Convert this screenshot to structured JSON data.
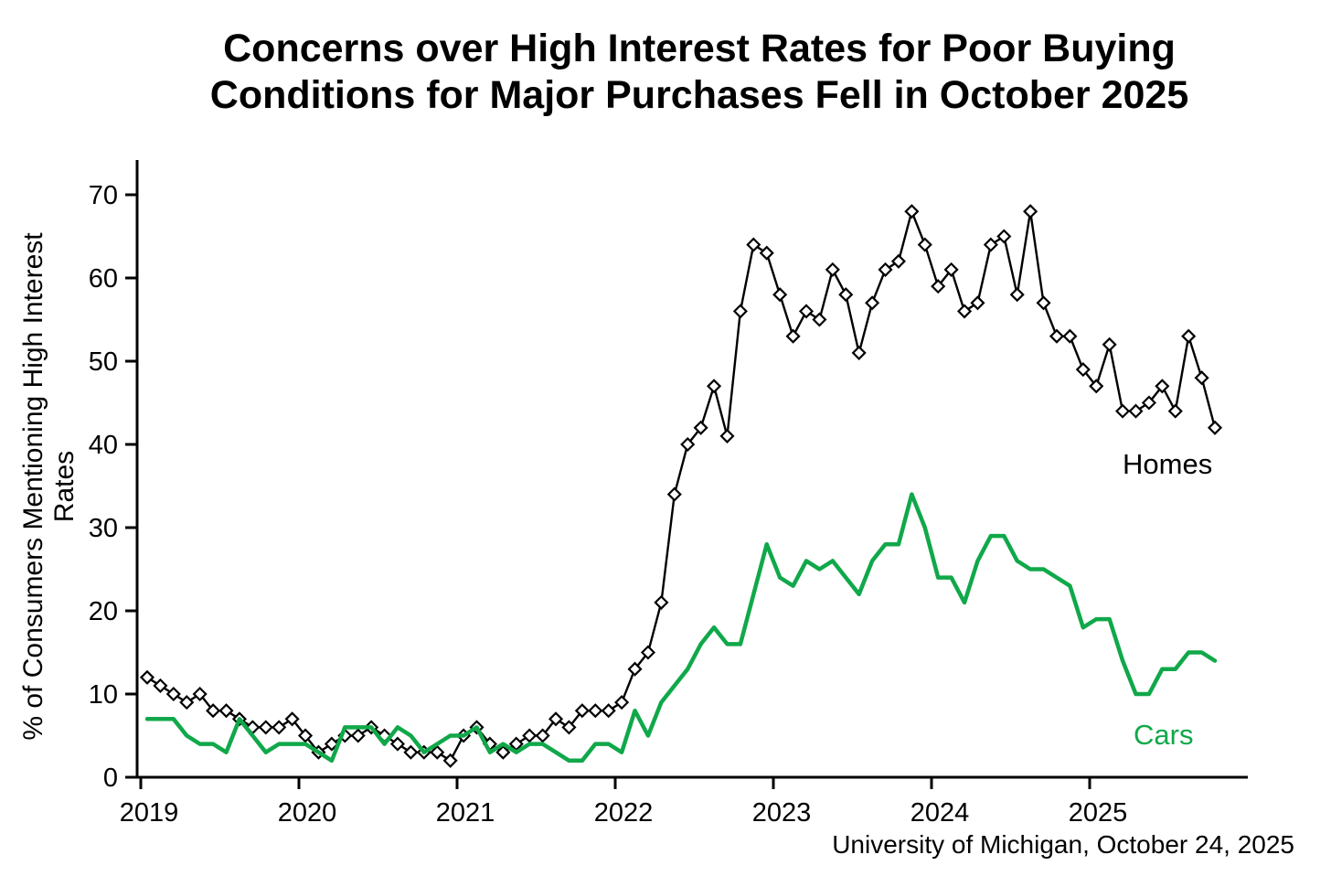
{
  "title_line1": "Concerns over High Interest Rates for Poor Buying",
  "title_line2": "Conditions for Major Purchases Fell in October 2025",
  "y_axis_label": "% of Consumers Mentioning High Interest Rates",
  "source_note": "University of Michigan, October 24, 2025",
  "labels": {
    "homes": "Homes",
    "cars": "Cars"
  },
  "colors": {
    "homes": "#000000",
    "cars": "#10a84a",
    "background": "#ffffff"
  },
  "chart_data": {
    "type": "line",
    "title": "Concerns over High Interest Rates for Poor Buying Conditions for Major Purchases Fell in October 2025",
    "xlabel": "",
    "ylabel": "% of Consumers Mentioning High Interest Rates",
    "x_tick_labels": [
      "2019",
      "2020",
      "2021",
      "2022",
      "2023",
      "2024",
      "2025"
    ],
    "y_ticks": [
      0,
      10,
      20,
      30,
      40,
      50,
      60,
      70
    ],
    "ylim": [
      0,
      74
    ],
    "grid": false,
    "legend_position": "inline-right",
    "x_monthly_start": "2019-01",
    "x_monthly_end": "2025-10",
    "series": [
      {
        "name": "Homes",
        "marker": "diamond",
        "color": "#000000",
        "values": [
          12,
          11,
          10,
          9,
          10,
          8,
          8,
          7,
          6,
          6,
          6,
          7,
          5,
          3,
          4,
          5,
          5,
          6,
          5,
          4,
          3,
          3,
          3,
          2,
          5,
          6,
          4,
          3,
          4,
          5,
          5,
          7,
          6,
          8,
          8,
          8,
          9,
          13,
          15,
          21,
          34,
          40,
          42,
          47,
          41,
          56,
          64,
          63,
          58,
          53,
          56,
          55,
          61,
          58,
          51,
          57,
          61,
          62,
          68,
          64,
          59,
          61,
          56,
          57,
          64,
          65,
          58,
          68,
          57,
          53,
          53,
          49,
          47,
          52,
          44,
          44,
          45,
          47,
          44,
          53,
          48,
          42
        ]
      },
      {
        "name": "Cars",
        "marker": "none",
        "color": "#10a84a",
        "values": [
          7,
          7,
          7,
          5,
          4,
          4,
          3,
          7,
          5,
          3,
          4,
          4,
          4,
          3,
          2,
          6,
          6,
          6,
          4,
          6,
          5,
          3,
          4,
          5,
          5,
          6,
          3,
          4,
          3,
          4,
          4,
          3,
          2,
          2,
          4,
          4,
          3,
          8,
          5,
          9,
          11,
          13,
          16,
          18,
          16,
          16,
          22,
          28,
          24,
          23,
          26,
          25,
          26,
          24,
          22,
          26,
          28,
          28,
          34,
          30,
          24,
          24,
          21,
          26,
          29,
          29,
          26,
          25,
          25,
          24,
          23,
          18,
          19,
          19,
          14,
          10,
          10,
          13,
          13,
          15,
          15,
          14
        ]
      }
    ]
  }
}
